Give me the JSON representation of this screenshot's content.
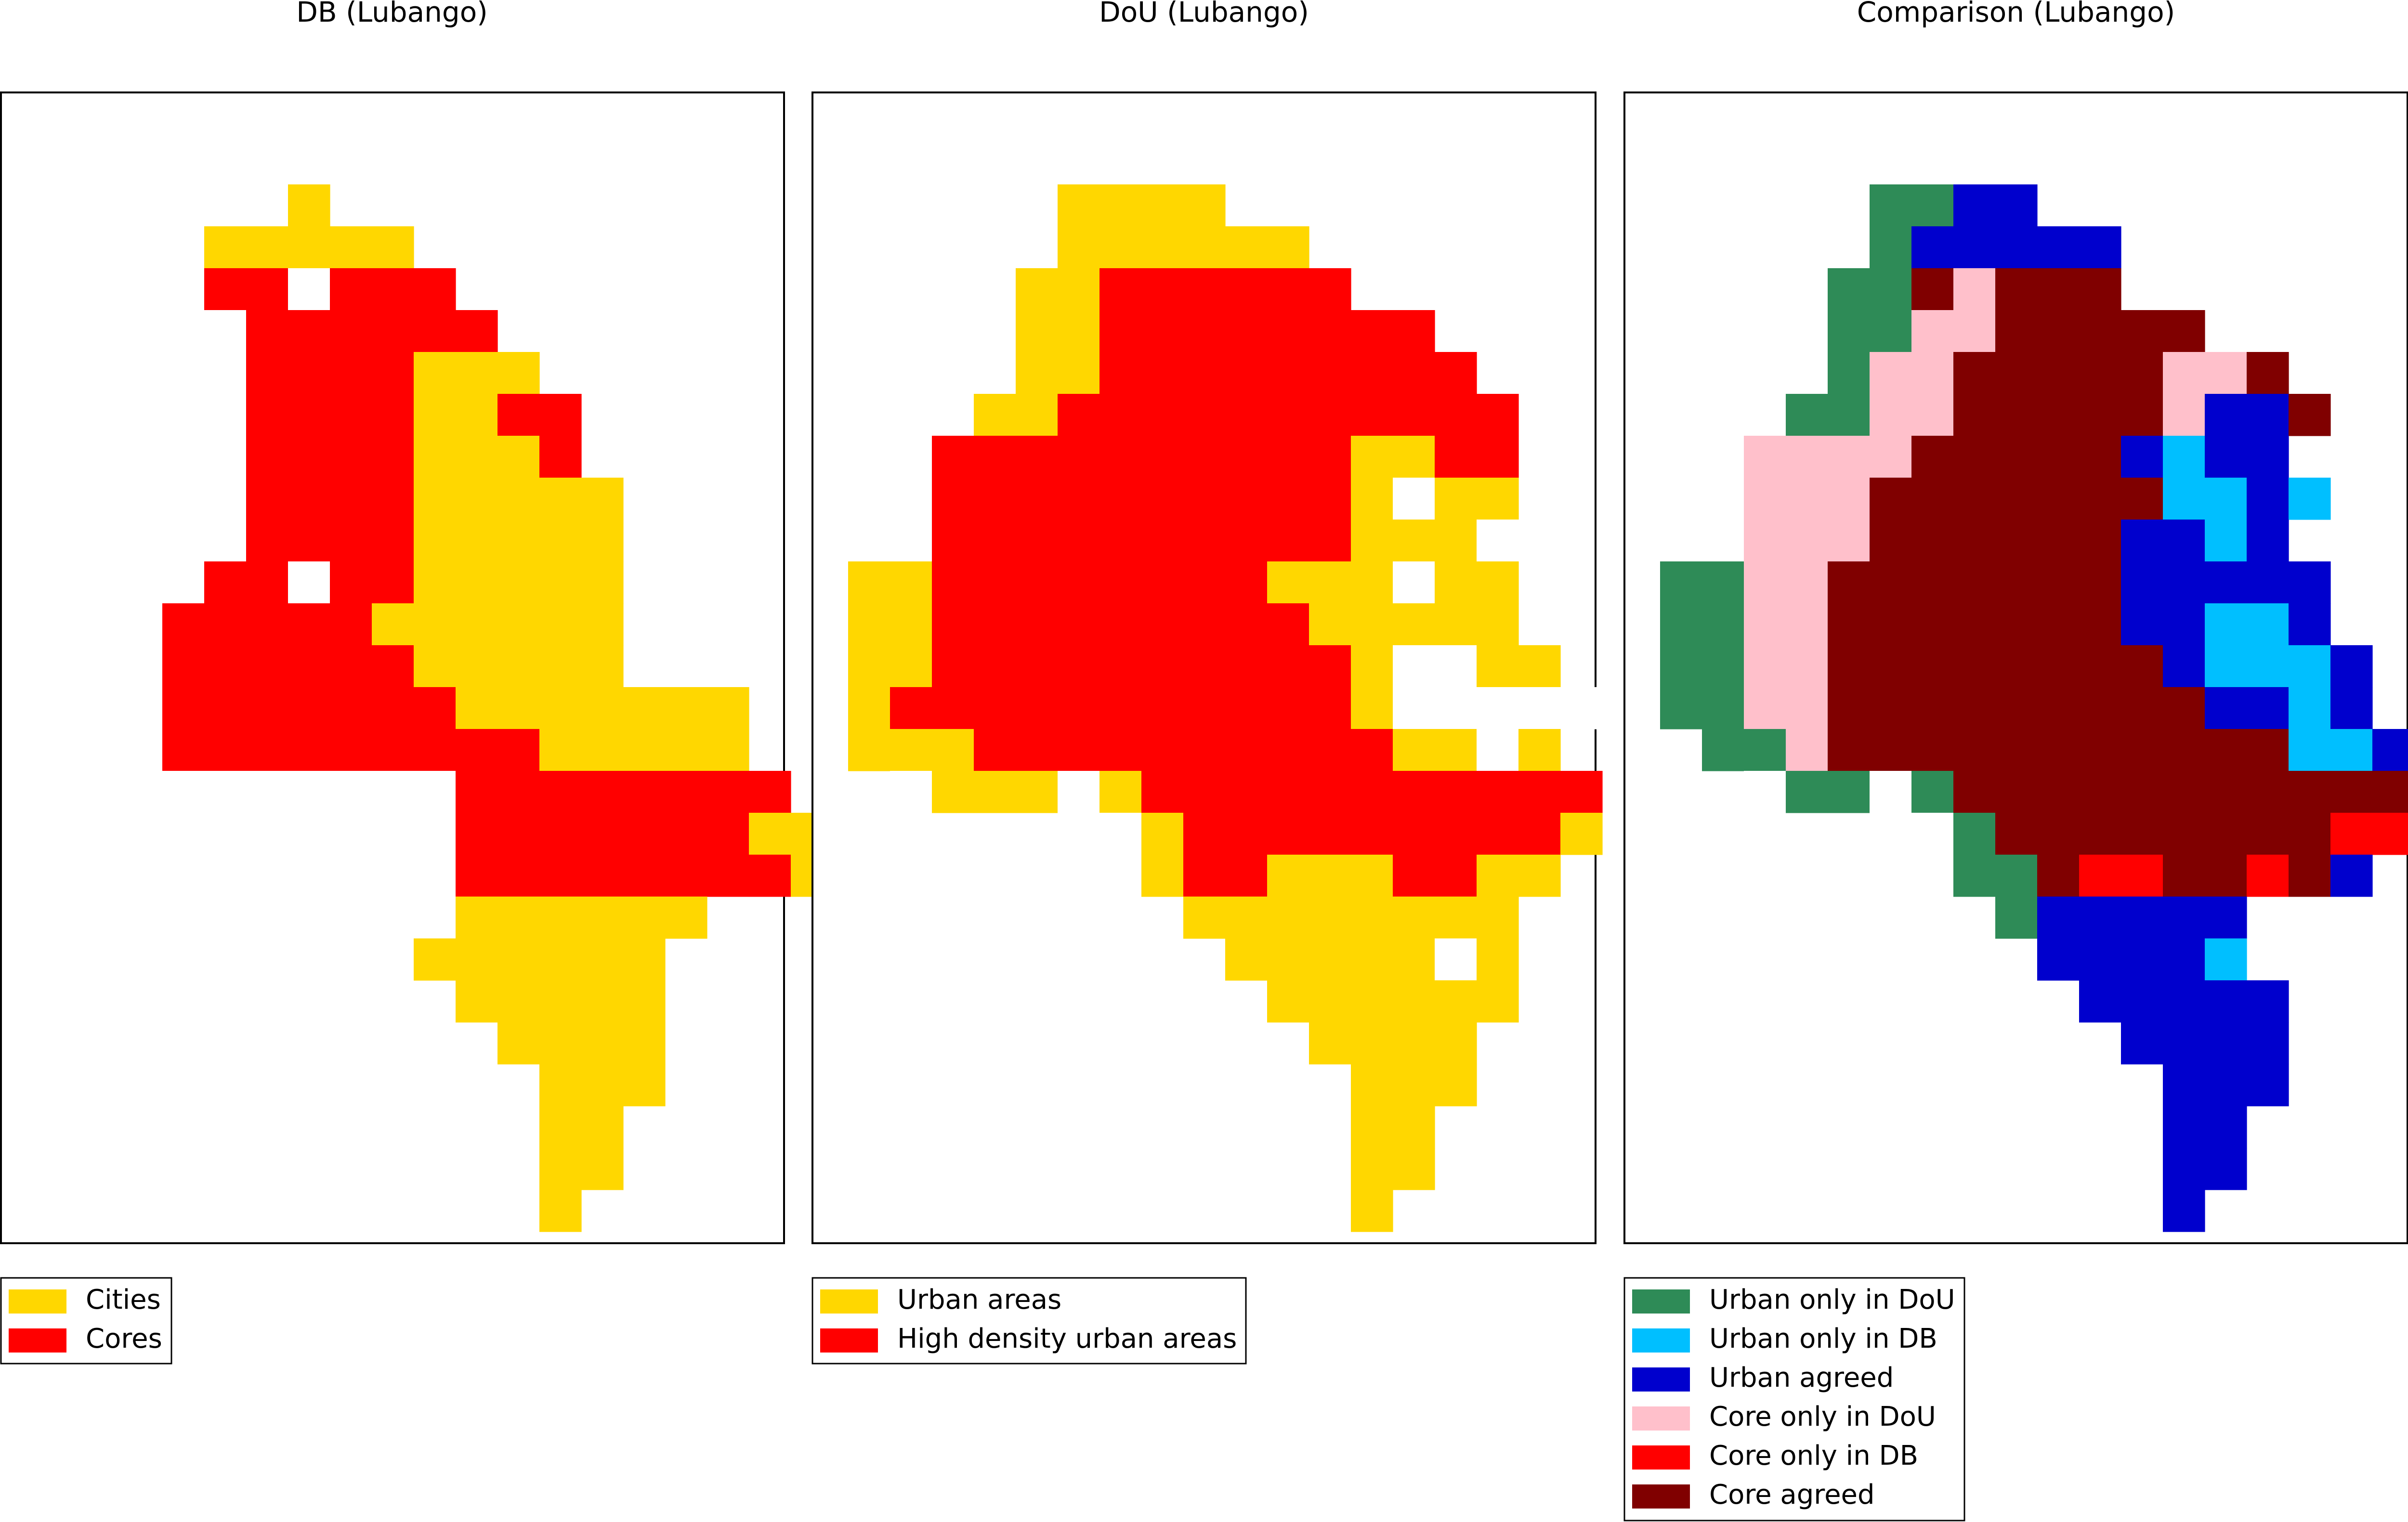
{
  "panels": [
    {
      "id": "db",
      "title": "DB (Lubango)",
      "legend": [
        {
          "label": "Cities",
          "color": "#FFD700"
        },
        {
          "label": "Cores",
          "color": "#FF0000"
        }
      ],
      "rows": [
        ".....0000.............",
        ".....0Y...............",
        "....YYYYY.............",
        "....RR0RRR............",
        "...00RRRRRR...........",
        "...00RRRRYYY..........",
        "..000RRRRYYRR.........",
        "..000RRRRYYYR.........",
        "..000RRRRYYYYY........",
        ".0000RRRRYYYYY........",
        "0000RR0RRYYYYY........",
        "000RRRRRYYYYYY........",
        "000RRRRRRYYYYY........",
        "000RRRRRRRYYYYYYY.....",
        ".00RRRRRRRRRYYYYY.....",
        "..00000000RRRRRRRR....",
        "......0000RRRRRRRYY...",
        ".......000RRRRRRRRY...",
        "........00YYYYYY......",
        ".........YYYYYY.......",
        "..........YYYYY.......",
        "...........YYYY.......",
        "............YYY.......",
        "............YY........",
        "............YY........",
        "............Y........."
      ]
    },
    {
      "id": "dou",
      "title": "DoU (Lubango)",
      "legend": [
        {
          "label": "Urban areas",
          "color": "#FFD700"
        },
        {
          "label": "High density urban areas",
          "color": "#FF0000"
        }
      ],
      "rows": [
        ".....0000.............",
        ".....YYYY.............",
        "....0YYYYYY...........",
        "....YYRRRRRR..........",
        "....YYRRRRRRRR........",
        "...0YYRRRRRRRRR.......",
        "...YYRRRRRRRRRRR......",
        "..RRRRRRRRRRYYRR......",
        "..RRRRRRRRRRY0YY......",
        "..RRRRRRRRRRYYY0......",
        "YYRRRRRRRRYYY0YY......",
        "YYRRRRRRRRRYYYYY......",
        "YYRRRRRRRRRRY00YY.....",
        "YRRRRRRRRRRRY00000.....",
        "YYYRRRRRRRRRRYY0Y......",
        ".0YYY0YRRRRRRRRRRR....",
        "......0YRRRRRRRRRY....",
        ".......YRRYYYRRYY.....",
        "........YYYYYYYY......",
        ".........YYYYY0Y......",
        "..........YYYYYY......",
        "...........YYYY.......",
        "............YYY.......",
        "............YY........",
        "............YY........",
        "............Y........."
      ]
    },
    {
      "id": "comparison",
      "title": "Comparison (Lubango)",
      "legend": [
        {
          "label": "Urban only in DoU",
          "color": "#2E8B57"
        },
        {
          "label": "Urban only in DB",
          "color": "#00BFFF"
        },
        {
          "label": "Urban agreed",
          "color": "#0000CD"
        },
        {
          "label": "Core only in DoU",
          "color": "#FFC0CB"
        },
        {
          "label": "Core only in DB",
          "color": "#FF0000"
        },
        {
          "label": "Core agreed",
          "color": "#800000"
        }
      ],
      "rows": [
        ".....0000.............",
        ".....GGBB.............",
        "....0GBBBBB...........",
        "....GGMPMMM...........",
        "....GGPPMMMMM.........",
        "...0GPPMMMMMPPM.......",
        "...GGPPMMMMMPBBM......",
        "..PPPPMMMMMBCBB.......",
        "..PPPMMMMMMMCCBC......",
        "..PPPMMMMMMBBCB.......",
        "GGPPMMMMMMMBBBBB......",
        "GGPPMMMMMMMBBCCB......",
        "GGPPMMMMMMMMBCCCB.....",
        "GGPPMMMMMMMMMBBCB.....",
        ".GGPMMMMMMMMMMMCCB.....",
        "..0GG0GMMMMMMMMMMMB....",
        "......0GMMMMMMMMRRMB...",
        ".......GGMRRMMRMB.....",
        "........GBBBBB........",
        ".........BBBBC........",
        "..........BBBBB.......",
        "...........BBBB.......",
        "............BBB.......",
        "............BB........",
        "............BB........",
        "............B........."
      ]
    }
  ]
}
